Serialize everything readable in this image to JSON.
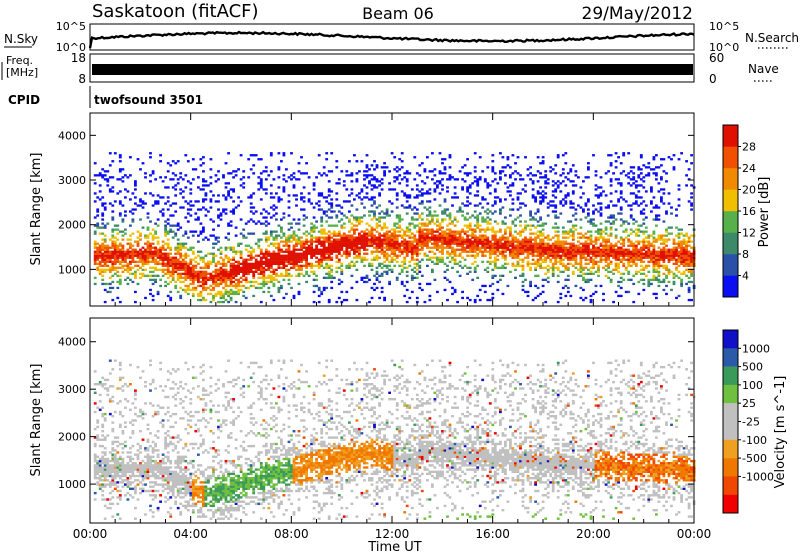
{
  "header": {
    "station": "Saskatoon (fitACF)",
    "beam": "Beam 06",
    "date": "29/May/2012"
  },
  "nsky_panel": {
    "left_label": "N.Sky",
    "right_label": "N.Search",
    "left_ticks": [
      "10^5",
      "10^0"
    ],
    "right_ticks": [
      "10^5",
      "10^0"
    ]
  },
  "freq_panel": {
    "left_label_line1": "Freq.",
    "left_label_line2": "[MHz]",
    "right_label": "Nave",
    "left_ticks": [
      "18",
      "8"
    ],
    "right_ticks": [
      "60",
      "0"
    ]
  },
  "cpid": {
    "label": "CPID",
    "program": "twofsound 3501"
  },
  "colors": {
    "power_scale": [
      "#0a0ef0",
      "#2a50a8",
      "#3d8a6a",
      "#58b04a",
      "#f0c000",
      "#f08a00",
      "#f05000",
      "#e01000"
    ],
    "velocity_scale": [
      "#f00000",
      "#f04800",
      "#f07800",
      "#f0a020",
      "#c0c0c0",
      "#c0c0c0",
      "#70c040",
      "#3a9a5a",
      "#2a5aa8",
      "#1010c8"
    ]
  },
  "chart_data": [
    {
      "type": "heatmap",
      "name": "power",
      "ylabel": "Slant Range [km]",
      "ylim": [
        180,
        4500
      ],
      "yticks": [
        "1000",
        "2000",
        "3000",
        "4000"
      ],
      "colorbar_label": "Power [dB]",
      "colorbar_ticks": [
        "4",
        "8",
        "12",
        "16",
        "20",
        "24",
        "28"
      ],
      "colorbar_range": [
        0,
        32
      ]
    },
    {
      "type": "heatmap",
      "name": "velocity",
      "ylabel": "Slant Range [km]",
      "ylim": [
        180,
        4500
      ],
      "yticks": [
        "1000",
        "2000",
        "3000",
        "4000"
      ],
      "colorbar_label": "Velocity [m s^-1]",
      "colorbar_ticks": [
        "1000",
        "500",
        "100",
        "25",
        "-25",
        "-100",
        "-500",
        "-1000"
      ]
    }
  ],
  "x_axis": {
    "label": "Time UT",
    "xlim_hours": [
      0,
      24
    ],
    "ticks": [
      "00:00",
      "04:00",
      "08:00",
      "12:00",
      "16:00",
      "20:00",
      "00:00"
    ]
  }
}
